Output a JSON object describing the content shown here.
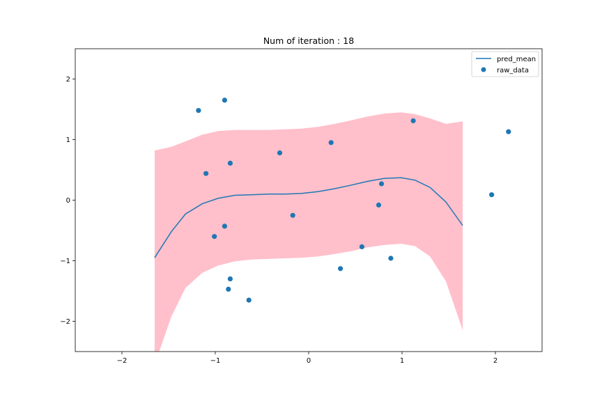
{
  "chart_data": {
    "type": "scatter",
    "title": "Num of iteration : 18",
    "xlabel": "",
    "ylabel": "",
    "xlim": [
      -2.5,
      2.5
    ],
    "ylim": [
      -2.5,
      2.5
    ],
    "xticks": [
      -2,
      -1,
      0,
      1,
      2
    ],
    "yticks": [
      -2,
      -1,
      0,
      1,
      2
    ],
    "xtick_labels": [
      "−2",
      "−1",
      "0",
      "1",
      "2"
    ],
    "ytick_labels": [
      "−2",
      "−1",
      "0",
      "1",
      "2"
    ],
    "grid": false,
    "legend": {
      "location": "top-right",
      "entries": [
        "pred_mean",
        "raw_data"
      ]
    },
    "colors": {
      "line": "#1f77b4",
      "points": "#1f77b4",
      "band": "#ffc0cb"
    },
    "series": [
      {
        "name": "pred_mean",
        "kind": "line",
        "x": [
          -1.65,
          -1.47,
          -1.32,
          -1.14,
          -0.97,
          -0.79,
          -0.61,
          -0.43,
          -0.25,
          -0.08,
          0.1,
          0.28,
          0.46,
          0.63,
          0.81,
          0.99,
          1.14,
          1.3,
          1.47,
          1.65
        ],
        "y": [
          -0.95,
          -0.52,
          -0.23,
          -0.06,
          0.03,
          0.08,
          0.09,
          0.1,
          0.1,
          0.11,
          0.14,
          0.19,
          0.25,
          0.31,
          0.36,
          0.37,
          0.33,
          0.21,
          -0.03,
          -0.42
        ]
      },
      {
        "name": "confidence_band",
        "kind": "area",
        "x": [
          -1.65,
          -1.47,
          -1.32,
          -1.14,
          -0.97,
          -0.79,
          -0.61,
          -0.43,
          -0.25,
          -0.08,
          0.1,
          0.28,
          0.46,
          0.63,
          0.81,
          0.99,
          1.14,
          1.3,
          1.47,
          1.65
        ],
        "y_upper": [
          0.82,
          0.88,
          0.97,
          1.08,
          1.14,
          1.16,
          1.16,
          1.16,
          1.17,
          1.18,
          1.21,
          1.26,
          1.32,
          1.38,
          1.43,
          1.45,
          1.42,
          1.35,
          1.26,
          1.3
        ],
        "y_lower": [
          -2.72,
          -1.92,
          -1.45,
          -1.2,
          -1.08,
          -1.01,
          -0.98,
          -0.97,
          -0.96,
          -0.95,
          -0.93,
          -0.89,
          -0.84,
          -0.78,
          -0.74,
          -0.72,
          -0.76,
          -0.93,
          -1.34,
          -2.15
        ]
      },
      {
        "name": "raw_data",
        "kind": "scatter",
        "x": [
          -1.18,
          -0.9,
          -0.31,
          0.24,
          1.12,
          2.14,
          -1.1,
          -0.84,
          0.78,
          1.96,
          -0.17,
          0.75,
          -0.9,
          -1.01,
          0.57,
          0.88,
          0.34,
          -0.84,
          -0.86,
          -0.64
        ],
        "y": [
          1.48,
          1.65,
          0.78,
          0.95,
          1.31,
          1.13,
          0.44,
          0.61,
          0.27,
          0.09,
          -0.25,
          -0.08,
          -0.43,
          -0.6,
          -0.77,
          -0.96,
          -1.13,
          -1.3,
          -1.47,
          -1.65
        ]
      }
    ]
  }
}
